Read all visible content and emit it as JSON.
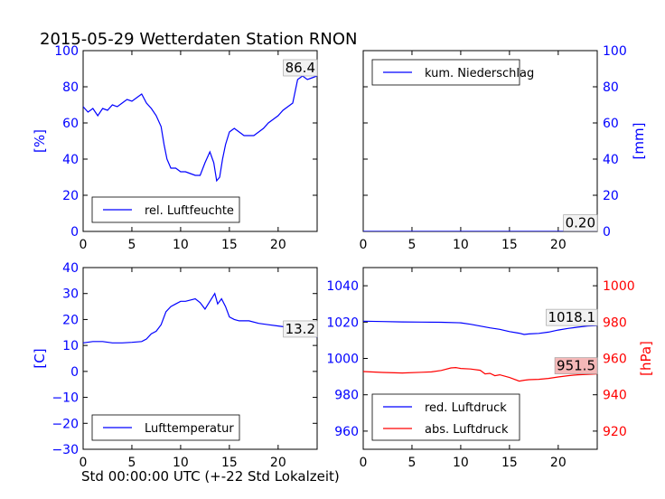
{
  "title": "2015-05-29 Wetterdaten Station RNON",
  "xlabel": "Std 00:00:00 UTC (+-22 Std Lokalzeit)",
  "colors": {
    "blue": "#0000ff",
    "red": "#ff0000",
    "black": "#000000",
    "pink": "#f4b8b8"
  },
  "chart_data": [
    {
      "type": "line",
      "panel": "top-left",
      "xlim": [
        0,
        24
      ],
      "ylim": [
        0,
        100
      ],
      "xticks": [
        "0",
        "5",
        "10",
        "15",
        "20"
      ],
      "yticks": [
        "0",
        "20",
        "40",
        "60",
        "80",
        "100"
      ],
      "ylabel": "[%]",
      "legend_position": "lower-left",
      "annotation": "86.4",
      "series": [
        {
          "name": "rel. Luftfeuchte",
          "color": "#0000ff",
          "x": [
            0,
            0.5,
            1,
            1.5,
            2,
            2.5,
            3,
            3.5,
            4,
            4.5,
            5,
            5.5,
            6,
            6.5,
            7,
            7.5,
            8,
            8.3,
            8.6,
            9,
            9.5,
            10,
            10.5,
            11,
            11.5,
            12,
            12.5,
            13,
            13.4,
            13.7,
            14,
            14.3,
            14.6,
            15,
            15.5,
            16,
            16.5,
            17,
            17.5,
            18,
            18.5,
            19,
            19.5,
            20,
            20.5,
            21,
            21.5,
            22,
            22.5,
            23,
            23.5,
            24
          ],
          "y": [
            69,
            66,
            68,
            64,
            68,
            67,
            70,
            69,
            71,
            73,
            72,
            74,
            76,
            71,
            68,
            64,
            58,
            48,
            40,
            35,
            35,
            33,
            33,
            32,
            31,
            31,
            38,
            44,
            38,
            28,
            30,
            40,
            48,
            55,
            57,
            55,
            53,
            53,
            53,
            55,
            57,
            60,
            62,
            64,
            67,
            69,
            71,
            84,
            86,
            84,
            85,
            86
          ]
        }
      ]
    },
    {
      "type": "line",
      "panel": "top-right",
      "xlim": [
        0,
        24
      ],
      "ylim": [
        0,
        100
      ],
      "xticks": [
        "0",
        "5",
        "10",
        "15",
        "20"
      ],
      "yticks": [
        "0",
        "20",
        "40",
        "60",
        "80",
        "100"
      ],
      "ylabel": "[mm]",
      "legend_position": "upper-left",
      "annotation": "0.20",
      "series": [
        {
          "name": "kum. Niederschlag",
          "color": "#0000ff",
          "x": [
            0,
            21,
            22,
            24
          ],
          "y": [
            0,
            0,
            0.2,
            0.2
          ]
        }
      ]
    },
    {
      "type": "line",
      "panel": "bottom-left",
      "xlim": [
        0,
        24
      ],
      "ylim": [
        -30,
        40
      ],
      "xticks": [
        "0",
        "5",
        "10",
        "15",
        "20"
      ],
      "yticks": [
        "−30",
        "−20",
        "−10",
        "0",
        "10",
        "20",
        "30",
        "40"
      ],
      "ylabel": "[C]",
      "legend_position": "lower-left",
      "annotation": "13.2",
      "series": [
        {
          "name": "Lufttemperatur",
          "color": "#0000ff",
          "x": [
            0,
            1,
            2,
            3,
            4,
            5,
            6,
            6.5,
            7,
            7.5,
            8,
            8.5,
            9,
            9.5,
            10,
            10.5,
            11,
            11.5,
            12,
            12.5,
            13,
            13.5,
            13.8,
            14.2,
            14.6,
            15,
            15.5,
            16,
            17,
            18,
            19,
            20,
            21,
            22,
            22.5,
            23,
            24
          ],
          "y": [
            11,
            11.5,
            11.5,
            11,
            11,
            11.2,
            11.5,
            12.5,
            14.5,
            15.5,
            18,
            23,
            25,
            26,
            27,
            27,
            27.5,
            28,
            26.5,
            24,
            27,
            30,
            26,
            28,
            25,
            21,
            20,
            19.5,
            19.5,
            18.5,
            18,
            17.5,
            17,
            16,
            15,
            14.5,
            13.2
          ]
        }
      ]
    },
    {
      "type": "line",
      "panel": "bottom-right",
      "xlim": [
        0,
        24
      ],
      "ylim_left": [
        950,
        1050
      ],
      "ylim_right": [
        910,
        1010
      ],
      "xticks": [
        "0",
        "5",
        "10",
        "15",
        "20"
      ],
      "yticks_left": [
        "960",
        "980",
        "1000",
        "1020",
        "1040"
      ],
      "yticks_right": [
        "920",
        "940",
        "960",
        "980",
        "1000"
      ],
      "ylabel_right": "[hPa]",
      "legend_position": "lower-left",
      "annotations": [
        "1018.1",
        "951.5"
      ],
      "series": [
        {
          "name": "red. Luftdruck",
          "color": "#0000ff",
          "axis": "left",
          "x": [
            0,
            2,
            4,
            6,
            8,
            10,
            11,
            12,
            13,
            14,
            15,
            16,
            16.5,
            17,
            18,
            19,
            20,
            21,
            22,
            23,
            24
          ],
          "y": [
            1020.5,
            1020.3,
            1020.1,
            1020,
            1019.9,
            1019.6,
            1018.8,
            1017.8,
            1016.8,
            1016,
            1014.8,
            1013.9,
            1013.2,
            1013.5,
            1013.8,
            1014.5,
            1015.6,
            1016.5,
            1017.2,
            1017.8,
            1018.1
          ]
        },
        {
          "name": "abs. Luftdruck",
          "color": "#ff0000",
          "axis": "right",
          "x": [
            0,
            2,
            4,
            6,
            7,
            8,
            9,
            9.5,
            10,
            11,
            12,
            12.5,
            13,
            13.5,
            14,
            15,
            16,
            16.5,
            17,
            18,
            19,
            20,
            21,
            22,
            23,
            24
          ],
          "y": [
            952.8,
            952.3,
            952,
            952.4,
            952.6,
            953.4,
            954.8,
            955,
            954.5,
            954.2,
            953.5,
            951.5,
            951.8,
            950.5,
            951,
            949.5,
            947.5,
            948,
            948.3,
            948.5,
            949,
            949.8,
            950.5,
            951,
            951.2,
            951.5
          ]
        }
      ]
    }
  ]
}
